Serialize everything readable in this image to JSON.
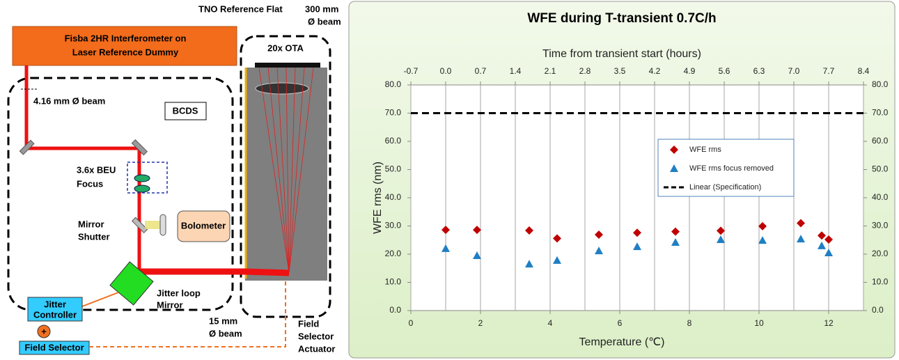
{
  "diagram": {
    "interferometer": [
      "Fisba 2HR Interferometer on",
      "Laser Reference Dummy"
    ],
    "input_beam": "4.16 mm Ø beam",
    "bcds": "BCDS",
    "beu": [
      "3.6x BEU",
      "Focus"
    ],
    "shutter": [
      "Mirror",
      "Shutter"
    ],
    "bolometer": "Bolometer",
    "jitter_mirror": [
      "Jitter loop",
      "Mirror"
    ],
    "jitter_controller": [
      "Jitter",
      "Controller"
    ],
    "sum": "+",
    "field_selector": "Field Selector",
    "output_beam": [
      "15 mm",
      "Ø beam"
    ],
    "actuator": [
      "Field",
      "Selector",
      "Actuator"
    ],
    "reference_flat": "TNO Reference Flat",
    "ota_beam": [
      "300 mm",
      "Ø beam"
    ],
    "ota": "20x OTA"
  },
  "chart_data": {
    "type": "scatter",
    "title": "WFE during T-transient 0.7C/h",
    "xlabel": "Temperature (℃)",
    "ylabel": "WFE rms (nm)",
    "x2label": "Time from  transient start (hours)",
    "xlim": [
      0,
      13
    ],
    "xticks": [
      0,
      2,
      4,
      6,
      8,
      10,
      12
    ],
    "x2lim": [
      -0.7,
      8.4
    ],
    "x2ticks": [
      -0.7,
      {
        "value": 0,
        "label": "0.0"
      },
      0.7,
      1.4,
      2.1,
      2.8,
      3.5,
      4.2,
      4.9,
      5.6,
      6.3,
      {
        "value": 7,
        "label": "7.0"
      },
      7.7,
      8.4
    ],
    "ylim": [
      0,
      80
    ],
    "yticks": [
      {
        "value": 0,
        "label": "0.0"
      },
      {
        "value": 10,
        "label": "10.0"
      },
      {
        "value": 20,
        "label": "20.0"
      },
      {
        "value": 30,
        "label": "30.0"
      },
      {
        "value": 40,
        "label": "40.0"
      },
      {
        "value": 50,
        "label": "50.0"
      },
      {
        "value": 60,
        "label": "60.0"
      },
      {
        "value": 70,
        "label": "70.0"
      },
      {
        "value": 80,
        "label": "80.0"
      }
    ],
    "y2lim": [
      0,
      80
    ],
    "y2ticks": [
      {
        "value": 0,
        "label": "0.0"
      },
      {
        "value": 10,
        "label": "10.0"
      },
      {
        "value": 20,
        "label": "20.0"
      },
      {
        "value": 30,
        "label": "30.0"
      },
      {
        "value": 40,
        "label": "40.0"
      },
      {
        "value": 50,
        "label": "50.0"
      },
      {
        "value": 60,
        "label": "60.0"
      },
      {
        "value": 70,
        "label": "70.0"
      },
      {
        "value": 80,
        "label": "80.0"
      }
    ],
    "grid": "x2",
    "legend": "center",
    "series": [
      {
        "name": "WFE rms",
        "color": "#c00000",
        "marker": "diamond",
        "x": [
          1.0,
          1.9,
          3.4,
          4.2,
          5.4,
          6.5,
          7.6,
          8.9,
          10.1,
          11.2,
          11.8,
          12.0
        ],
        "values": [
          28.6,
          28.6,
          28.4,
          25.6,
          26.9,
          27.6,
          28.0,
          28.3,
          29.9,
          31.0,
          26.6,
          25.2
        ]
      },
      {
        "name": "WFE rms focus removed",
        "color": "#1f7fc4",
        "marker": "triangle",
        "x": [
          1.0,
          1.9,
          3.4,
          4.2,
          5.4,
          6.5,
          7.6,
          8.9,
          10.1,
          11.2,
          11.8,
          12.0
        ],
        "values": [
          22.0,
          19.5,
          16.5,
          17.8,
          21.2,
          22.7,
          24.2,
          25.2,
          24.9,
          25.4,
          23.0,
          20.5
        ]
      },
      {
        "name": "Linear (Specification)",
        "color": "#000000",
        "style": "dashed",
        "x": [
          0,
          13
        ],
        "values": [
          70,
          70
        ]
      }
    ]
  }
}
